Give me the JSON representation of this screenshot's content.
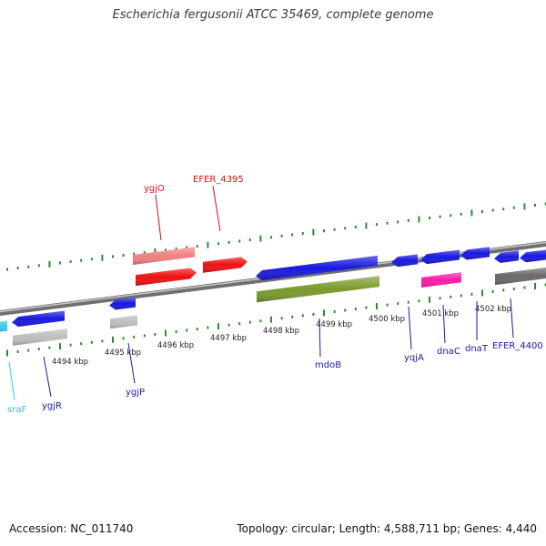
{
  "title": "Escherichia fergusonii ATCC 35469, complete genome",
  "accession": "Accession: NC_011740",
  "summary": "Topology: circular; Length: 4,588,711 bp; Genes: 4,440",
  "colors": {
    "backbone": "#8a8a8a",
    "tick": "#2e8b2e",
    "cds": "#1818e0",
    "highlight": "#ee1111",
    "pseudo_light": "#f08080",
    "rrna": "#7a9a2a",
    "trna": "#ff1aa8",
    "gray": "#bdbdbd",
    "dark_gray": "#6a6a6a",
    "srna": "#33ccee"
  },
  "scale_labels": [
    "4494 kbp",
    "4495 kbp",
    "4496 kbp",
    "4497 kbp",
    "4498 kbp",
    "4499 kbp",
    "4500 kbp",
    "4501 kbp",
    "4502 kbp"
  ],
  "gene_labels": {
    "sraF": "sraF",
    "ygjR": "ygjR",
    "ygjP": "ygjP",
    "ygjO": "ygjO",
    "EFER_4395": "EFER_4395",
    "mdoB": "mdoB",
    "yqjA": "yqjA",
    "dnaC": "dnaC",
    "dnaT": "dnaT",
    "EFER_4400": "EFER_4400"
  }
}
